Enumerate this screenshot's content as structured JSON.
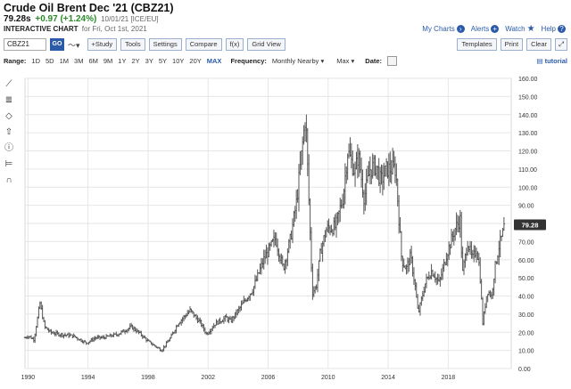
{
  "header": {
    "title": "Crude Oil Brent Dec '21 (CBZ21)",
    "price": "79.28s",
    "change": "+0.97 (+1.24%)",
    "meta": "10/01/21 [ICE/EU]",
    "chart_label": "INTERACTIVE CHART",
    "for_date": "for Fri, Oct 1st, 2021"
  },
  "topright": {
    "my_charts": "My Charts",
    "alerts": "Alerts",
    "watch": "Watch",
    "help": "Help"
  },
  "toolbar": {
    "symbol_value": "CBZ21",
    "go": "GO",
    "study": "+Study",
    "tools": "Tools",
    "settings": "Settings",
    "compare": "Compare",
    "fx": "f(x)",
    "grid_view": "Grid View",
    "templates": "Templates",
    "print": "Print",
    "clear": "Clear"
  },
  "rangebar": {
    "range_label": "Range:",
    "ranges": [
      "1D",
      "5D",
      "1M",
      "3M",
      "6M",
      "9M",
      "1Y",
      "2Y",
      "3Y",
      "5Y",
      "10Y",
      "20Y",
      "MAX"
    ],
    "active_range": "MAX",
    "frequency_label": "Frequency:",
    "frequency_value": "Monthly Nearby",
    "max_value": "Max",
    "date_label": "Date:",
    "tutorial": "tutorial"
  },
  "colors": {
    "accent": "#2a5aa8",
    "positive": "#2a8a2a",
    "bar": "#555555",
    "grid": "#e6e6e6",
    "last_price_tag": "#333333"
  },
  "chart_data": {
    "type": "ohlc-bar",
    "symbol": "CBZ21",
    "frequency": "Monthly Nearby",
    "last_price": "79.28",
    "y_ticks": [
      "160.00",
      "150.00",
      "140.00",
      "130.00",
      "120.00",
      "110.00",
      "100.00",
      "90.00",
      "80.00",
      "70.00",
      "60.00",
      "50.00",
      "40.00",
      "30.00",
      "20.00",
      "10.00",
      "0.00"
    ],
    "x_ticks": [
      "1990",
      "1994",
      "1998",
      "2002",
      "2006",
      "2010",
      "2014",
      "2018"
    ],
    "ylim": [
      0,
      160
    ],
    "xlim": [
      1989.8,
      2022.2
    ],
    "anchors": [
      [
        1989.8,
        17
      ],
      [
        1990.0,
        18
      ],
      [
        1990.4,
        16
      ],
      [
        1990.6,
        26
      ],
      [
        1990.8,
        36
      ],
      [
        1991.1,
        23
      ],
      [
        1991.5,
        20
      ],
      [
        1992.0,
        19
      ],
      [
        1993.0,
        18
      ],
      [
        1993.9,
        14
      ],
      [
        1994.5,
        17
      ],
      [
        1995.0,
        17
      ],
      [
        1996.0,
        19
      ],
      [
        1996.9,
        23
      ],
      [
        1997.5,
        19
      ],
      [
        1998.0,
        15
      ],
      [
        1998.9,
        10
      ],
      [
        1999.5,
        17
      ],
      [
        2000.0,
        25
      ],
      [
        2000.8,
        32
      ],
      [
        2001.5,
        25
      ],
      [
        2001.9,
        19
      ],
      [
        2002.5,
        25
      ],
      [
        2003.2,
        28
      ],
      [
        2003.5,
        26
      ],
      [
        2004.5,
        38
      ],
      [
        2005.0,
        44
      ],
      [
        2005.7,
        60
      ],
      [
        2006.5,
        72
      ],
      [
        2007.0,
        55
      ],
      [
        2007.5,
        72
      ],
      [
        2007.9,
        92
      ],
      [
        2008.5,
        140
      ],
      [
        2008.95,
        42
      ],
      [
        2009.2,
        45
      ],
      [
        2009.5,
        65
      ],
      [
        2009.9,
        77
      ],
      [
        2010.5,
        78
      ],
      [
        2011.0,
        95
      ],
      [
        2011.3,
        120
      ],
      [
        2011.8,
        108
      ],
      [
        2012.0,
        118
      ],
      [
        2012.4,
        94
      ],
      [
        2012.8,
        110
      ],
      [
        2013.2,
        112
      ],
      [
        2013.5,
        103
      ],
      [
        2013.9,
        110
      ],
      [
        2014.5,
        110
      ],
      [
        2014.9,
        60
      ],
      [
        2015.2,
        55
      ],
      [
        2015.5,
        62
      ],
      [
        2015.8,
        45
      ],
      [
        2016.0,
        30
      ],
      [
        2016.5,
        48
      ],
      [
        2016.9,
        54
      ],
      [
        2017.4,
        47
      ],
      [
        2017.9,
        63
      ],
      [
        2018.5,
        78
      ],
      [
        2018.8,
        82
      ],
      [
        2018.95,
        52
      ],
      [
        2019.3,
        70
      ],
      [
        2019.6,
        60
      ],
      [
        2019.9,
        66
      ],
      [
        2020.1,
        55
      ],
      [
        2020.3,
        25
      ],
      [
        2020.6,
        43
      ],
      [
        2020.9,
        40
      ],
      [
        2021.1,
        55
      ],
      [
        2021.4,
        68
      ],
      [
        2021.6,
        73
      ],
      [
        2021.75,
        79.28
      ]
    ]
  }
}
